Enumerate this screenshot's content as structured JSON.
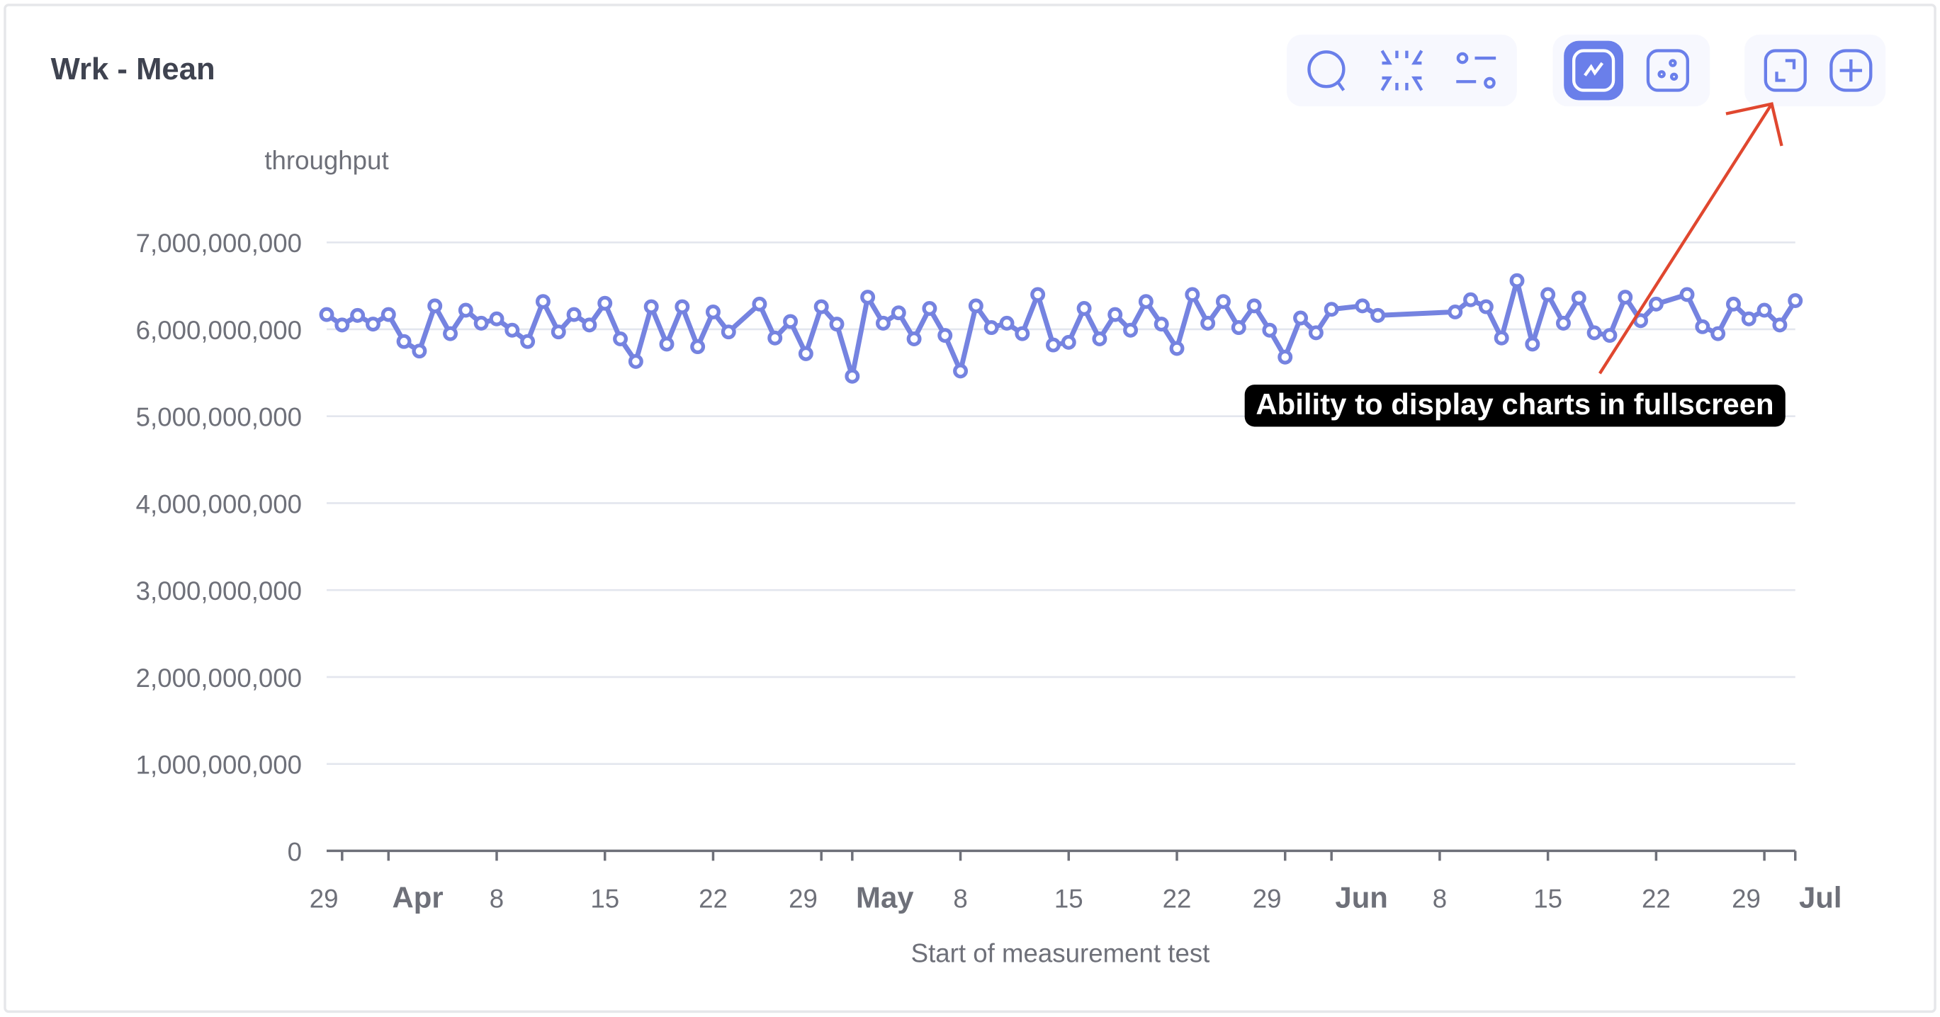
{
  "card": {
    "title": "Wrk - Mean"
  },
  "toolbar": {
    "buttons": [
      {
        "name": "zoom",
        "icon": "search-icon"
      },
      {
        "name": "reset-zoom",
        "icon": "collapse-icon"
      },
      {
        "name": "options",
        "icon": "sliders-icon"
      },
      {
        "name": "line-chart",
        "icon": "line-chart-icon",
        "active": true
      },
      {
        "name": "scatter-chart",
        "icon": "scatter-icon",
        "active": false
      },
      {
        "name": "fullscreen",
        "icon": "fullscreen-icon"
      },
      {
        "name": "add",
        "icon": "plus-icon"
      }
    ]
  },
  "annotation": {
    "text": "Ability to display charts in fullscreen",
    "arrow_color": "#e0472f"
  },
  "colors": {
    "series": "#7583e0",
    "active_button": "#6a7fea",
    "grid": "#e3e6ee",
    "axis": "#6e7079"
  },
  "chart_data": {
    "type": "line",
    "title": "Wrk - Mean",
    "ylabel": "throughput",
    "xlabel": "Start of measurement test",
    "ylim": [
      0,
      7000000000
    ],
    "yticks": [
      "0",
      "1,000,000,000",
      "2,000,000,000",
      "3,000,000,000",
      "4,000,000,000",
      "5,000,000,000",
      "6,000,000,000",
      "7,000,000,000"
    ],
    "x_unit": "days since Apr 1",
    "xlim": [
      -4,
      91
    ],
    "xticks": [
      {
        "x": -3,
        "label": "29",
        "bold": false
      },
      {
        "x": 0,
        "label": "Apr",
        "bold": true
      },
      {
        "x": 7,
        "label": "8",
        "bold": false
      },
      {
        "x": 14,
        "label": "15",
        "bold": false
      },
      {
        "x": 21,
        "label": "22",
        "bold": false
      },
      {
        "x": 28,
        "label": "29",
        "bold": false
      },
      {
        "x": 30,
        "label": "May",
        "bold": true
      },
      {
        "x": 37,
        "label": "8",
        "bold": false
      },
      {
        "x": 44,
        "label": "15",
        "bold": false
      },
      {
        "x": 51,
        "label": "22",
        "bold": false
      },
      {
        "x": 58,
        "label": "29",
        "bold": false
      },
      {
        "x": 61,
        "label": "Jun",
        "bold": true
      },
      {
        "x": 68,
        "label": "8",
        "bold": false
      },
      {
        "x": 75,
        "label": "15",
        "bold": false
      },
      {
        "x": 82,
        "label": "22",
        "bold": false
      },
      {
        "x": 89,
        "label": "29",
        "bold": false
      },
      {
        "x": 91,
        "label": "Jul",
        "bold": true
      }
    ],
    "grid": true,
    "series": [
      {
        "name": "throughput",
        "x": [
          -4,
          -3,
          -2,
          -1,
          0,
          1,
          2,
          3,
          4,
          5,
          6,
          7,
          8,
          9,
          10,
          11,
          12,
          13,
          14,
          15,
          16,
          17,
          18,
          19,
          20,
          21,
          22,
          24,
          25,
          26,
          27,
          28,
          29,
          30,
          31,
          32,
          33,
          34,
          35,
          36,
          37,
          38,
          39,
          40,
          41,
          42,
          43,
          44,
          45,
          46,
          47,
          48,
          49,
          50,
          51,
          52,
          53,
          54,
          55,
          56,
          57,
          58,
          59,
          60,
          61,
          63,
          64,
          69,
          70,
          71,
          72,
          73,
          74,
          75,
          76,
          77,
          78,
          79,
          80,
          81,
          82,
          84,
          85,
          86,
          87,
          88,
          89,
          90,
          91
        ],
        "values_billions": [
          6.17,
          6.05,
          6.16,
          6.06,
          6.17,
          5.86,
          5.75,
          6.27,
          5.95,
          6.22,
          6.07,
          6.12,
          5.99,
          5.86,
          6.32,
          5.97,
          6.17,
          6.05,
          6.3,
          5.89,
          5.63,
          6.26,
          5.83,
          6.26,
          5.8,
          6.2,
          5.97,
          6.29,
          5.9,
          6.09,
          5.72,
          6.26,
          6.06,
          5.46,
          6.37,
          6.07,
          6.19,
          5.89,
          6.24,
          5.93,
          5.52,
          6.27,
          6.02,
          6.07,
          5.95,
          6.4,
          5.82,
          5.85,
          6.24,
          5.89,
          6.17,
          5.99,
          6.32,
          6.06,
          5.78,
          6.4,
          6.07,
          6.32,
          6.02,
          6.27,
          5.99,
          5.68,
          6.13,
          5.96,
          6.23,
          6.27,
          6.16,
          6.2,
          6.34,
          6.26,
          5.9,
          6.56,
          5.83,
          6.4,
          6.07,
          6.36,
          5.96,
          5.93,
          6.37,
          6.1,
          6.29,
          6.4,
          6.03,
          5.95,
          6.29,
          6.12,
          6.22,
          6.05,
          6.33
        ]
      }
    ]
  }
}
